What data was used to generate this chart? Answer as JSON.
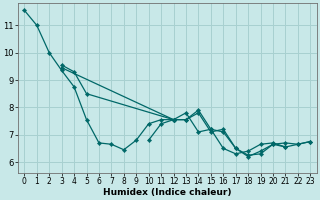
{
  "xlabel": "Humidex (Indice chaleur)",
  "bg_color": "#c8e8e8",
  "line_color": "#006868",
  "grid_color": "#a8d0d0",
  "xlim": [
    -0.5,
    23.5
  ],
  "ylim": [
    5.6,
    11.8
  ],
  "yticks": [
    6,
    7,
    8,
    9,
    10,
    11
  ],
  "xticks": [
    0,
    1,
    2,
    3,
    4,
    5,
    6,
    7,
    8,
    9,
    10,
    11,
    12,
    13,
    14,
    15,
    16,
    17,
    18,
    19,
    20,
    21,
    22,
    23
  ],
  "series": [
    {
      "x": [
        0,
        1,
        2,
        3,
        4,
        5,
        6,
        7,
        8,
        9,
        10,
        11,
        12,
        13,
        14,
        15,
        16,
        17,
        18,
        19,
        20,
        21
      ],
      "y": [
        11.55,
        11.0,
        10.0,
        9.35,
        8.75,
        7.55,
        6.7,
        6.65,
        6.45,
        6.8,
        7.4,
        7.55,
        7.55,
        7.8,
        7.1,
        7.2,
        6.5,
        6.3,
        6.4,
        6.65,
        6.7,
        6.55
      ]
    },
    {
      "x": [
        3,
        4,
        5,
        12,
        13,
        14,
        15,
        16,
        17,
        18,
        19,
        20,
        21,
        22,
        23
      ],
      "y": [
        9.55,
        9.3,
        8.5,
        7.55,
        7.55,
        7.8,
        7.1,
        7.2,
        6.5,
        6.2,
        6.4,
        6.65,
        6.55,
        6.65,
        6.75
      ]
    },
    {
      "x": [
        3,
        12,
        13,
        14,
        15,
        16,
        17,
        18,
        19,
        20,
        21,
        22,
        23
      ],
      "y": [
        9.45,
        7.55,
        7.55,
        7.9,
        7.2,
        7.1,
        6.5,
        6.25,
        6.3,
        6.65,
        6.7,
        6.65,
        6.75
      ]
    },
    {
      "x": [
        10,
        11,
        12
      ],
      "y": [
        6.8,
        7.4,
        7.55
      ]
    }
  ]
}
